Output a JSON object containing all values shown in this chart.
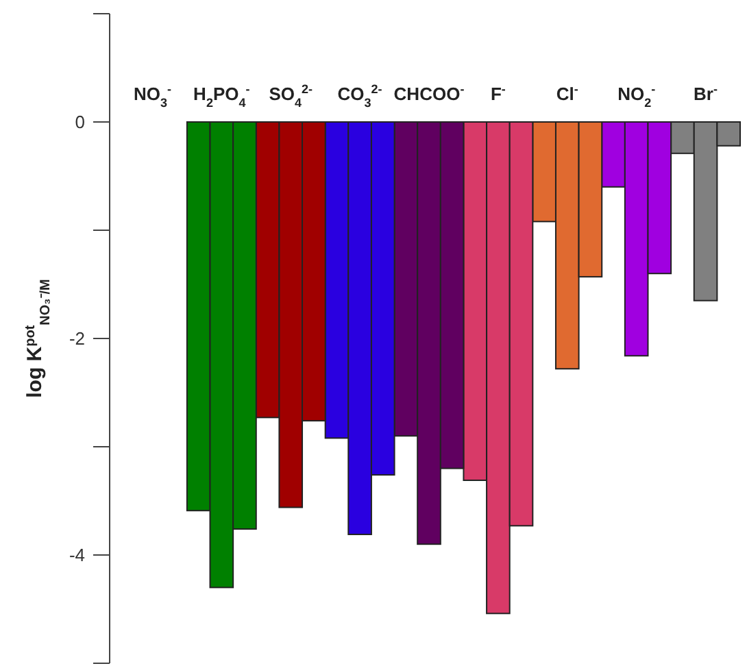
{
  "chart_data": {
    "type": "bar",
    "ylabel": "log K$^{pot}$$_{NO₃⁻/M}$",
    "categories": [
      "NO$_{3}$$^{-}$",
      "H$_{2}$PO$_{4}$$^{-}$",
      "SO$_{4}$$^{2-}$",
      "CO$_{3}$$^{2-}$",
      "CHCOO$^{-}$",
      "F$^{-}$",
      "Cl$^{-}$",
      "NO$_{2}$$^{-}$",
      "Br$^{-}$"
    ],
    "series": [
      {
        "colors": [
          "#333333",
          "#008000",
          "#a00000",
          "#2a00e0",
          "#600060",
          "#d83a68",
          "#e06a30",
          "#a000e0",
          "#808080"
        ],
        "values": [
          0,
          -3.59,
          -2.73,
          -2.92,
          -2.9,
          -3.31,
          -0.92,
          -0.6,
          -0.29
        ]
      },
      {
        "colors": [
          "#333333",
          "#008000",
          "#a00000",
          "#2a00e0",
          "#600060",
          "#d83a68",
          "#e06a30",
          "#a000e0",
          "#808080"
        ],
        "values": [
          0,
          -4.3,
          -3.56,
          -3.81,
          -3.9,
          -4.54,
          -2.28,
          -2.16,
          -1.65
        ]
      },
      {
        "colors": [
          "#333333",
          "#008000",
          "#a00000",
          "#2a00e0",
          "#600060",
          "#d83a68",
          "#e06a30",
          "#a000e0",
          "#808080"
        ],
        "values": [
          0,
          -3.76,
          -2.76,
          -3.26,
          -3.2,
          -3.73,
          -1.43,
          -1.4,
          -0.22
        ]
      }
    ],
    "ylim": [
      -5,
      1
    ],
    "yticks": [
      {
        "value": 1,
        "label": null
      },
      0,
      {
        "value": -1,
        "label": null
      },
      -2,
      {
        "value": -3,
        "label": null
      },
      -4,
      {
        "value": -5,
        "label": null
      }
    ],
    "grid": false
  }
}
